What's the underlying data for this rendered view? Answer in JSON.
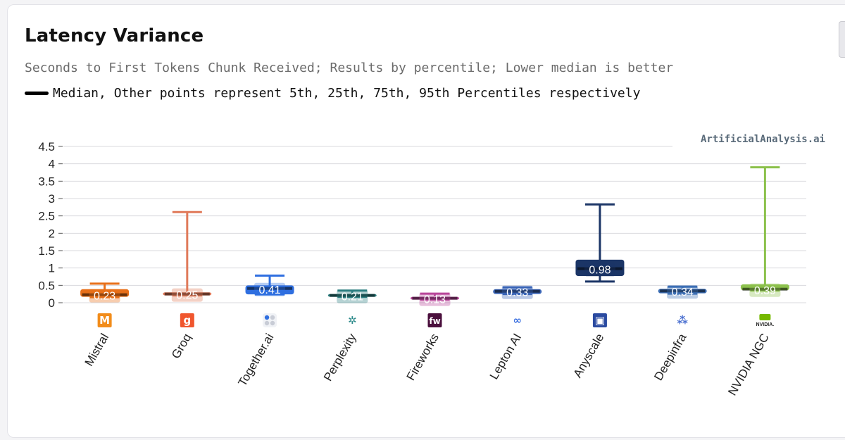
{
  "header": {
    "title": "Latency Variance",
    "subtitle": "Seconds to First Tokens Chunk Received; Results by percentile; Lower median is better",
    "legend_text": "Median, Other points represent 5th, 25th, 75th, 95th Percentiles respectively"
  },
  "watermark": "ArtificialAnalysis.ai",
  "chart_data": {
    "type": "box",
    "title": "Latency Variance",
    "subtitle": "Seconds to First Tokens Chunk Received; Results by percentile; Lower median is better",
    "xlabel": "",
    "ylabel": "",
    "ylim": [
      0,
      4.5
    ],
    "yticks": [
      "0",
      "0.5",
      "1",
      "1.5",
      "2",
      "2.5",
      "3",
      "3.5",
      "4",
      "4.5"
    ],
    "grid": true,
    "categories": [
      "Mistral",
      "Groq",
      "Together.ai",
      "Perplexity",
      "Fireworks",
      "Lepton AI",
      "Anyscale",
      "Deepinfra",
      "NVIDIA NGC"
    ],
    "series": [
      {
        "category": "Mistral",
        "p5": 0.16,
        "p25": 0.18,
        "median": 0.23,
        "p75": 0.38,
        "p95": 0.55,
        "label": "0.23",
        "color": "#e8701a",
        "icon": "mistral-logo-icon"
      },
      {
        "category": "Groq",
        "p5": 0.21,
        "p25": 0.22,
        "median": 0.25,
        "p75": 0.29,
        "p95": 2.61,
        "label": "0.25",
        "color": "#e07a5a",
        "icon": "groq-logo-icon"
      },
      {
        "category": "Together.ai",
        "p5": 0.24,
        "p25": 0.25,
        "median": 0.41,
        "p75": 0.49,
        "p95": 0.78,
        "label": "0.41",
        "color": "#2f6fe0",
        "icon": "together-logo-icon"
      },
      {
        "category": "Perplexity",
        "p5": 0.17,
        "p25": 0.18,
        "median": 0.21,
        "p75": 0.24,
        "p95": 0.35,
        "label": "0.21",
        "color": "#2c7f80",
        "icon": "perplexity-logo-icon"
      },
      {
        "category": "Fireworks",
        "p5": 0.09,
        "p25": 0.1,
        "median": 0.13,
        "p75": 0.16,
        "p95": 0.26,
        "label": "0.13",
        "color": "#b9479a",
        "icon": "fireworks-logo-icon"
      },
      {
        "category": "Lepton AI",
        "p5": 0.25,
        "p25": 0.26,
        "median": 0.33,
        "p75": 0.38,
        "p95": 0.44,
        "label": "0.33",
        "color": "#3a65b6",
        "icon": "lepton-logo-icon"
      },
      {
        "category": "Anyscale",
        "p5": 0.61,
        "p25": 0.78,
        "median": 0.98,
        "p75": 1.23,
        "p95": 2.83,
        "label": "0.98",
        "color": "#1b3566",
        "icon": "anyscale-logo-icon"
      },
      {
        "category": "Deepinfra",
        "p5": 0.26,
        "p25": 0.28,
        "median": 0.34,
        "p75": 0.39,
        "p95": 0.46,
        "label": "0.34",
        "color": "#3d6fb5",
        "icon": "deepinfra-logo-icon"
      },
      {
        "category": "NVIDIA NGC",
        "p5": 0.35,
        "p25": 0.37,
        "median": 0.39,
        "p75": 0.52,
        "p95": 3.9,
        "label": "0.39",
        "color": "#8cc14c",
        "icon": "nvidia-logo-icon"
      }
    ]
  },
  "icon_glyphs": {
    "mistral-logo-icon": "M",
    "groq-logo-icon": "g",
    "together-logo-icon": "",
    "perplexity-logo-icon": "✲",
    "fireworks-logo-icon": "fw",
    "lepton-logo-icon": "∞",
    "anyscale-logo-icon": "▣",
    "deepinfra-logo-icon": "⁂",
    "nvidia-logo-icon": "NVIDIA."
  }
}
